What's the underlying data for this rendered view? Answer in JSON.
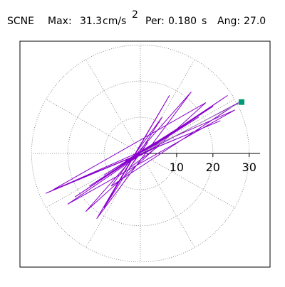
{
  "header": {
    "station": "SCNE",
    "max_label": "Max:",
    "max_value": 31.3,
    "max_units": "cm/s",
    "max_units_exp": "2",
    "period_label": "Per:",
    "period_value": {
      "value": 0.18,
      "label": "0.180"
    },
    "period_units": "s",
    "angle_label": "Ang:",
    "angle_value": {
      "value": 27,
      "label": "27.0"
    }
  },
  "chart_data": {
    "type": "orbit",
    "color": "#8800cc",
    "peak_color": "#009977",
    "rlim": [
      0,
      33
    ],
    "rticks": [
      10,
      20,
      30
    ],
    "theta_grid": [
      0,
      30,
      60,
      90,
      120,
      150,
      180,
      210,
      240,
      270,
      300,
      330
    ],
    "x": [
      0,
      3,
      -2,
      4,
      -4,
      8,
      -6,
      12,
      -10,
      16,
      -14,
      20,
      -18,
      24,
      -20,
      26,
      -26,
      22,
      -24,
      18,
      -15,
      14,
      -12,
      8,
      -10,
      6,
      -8,
      27,
      -5,
      5,
      -3,
      2,
      0
    ],
    "y": [
      0,
      2,
      -1,
      3,
      -2,
      5,
      -4,
      8,
      -6,
      10,
      -9,
      13,
      -12,
      16,
      -14,
      12,
      -11,
      9,
      -10,
      14,
      -16,
      17,
      -18,
      16,
      -15,
      10,
      -9,
      14,
      -3,
      2,
      -4,
      3,
      0
    ]
  }
}
